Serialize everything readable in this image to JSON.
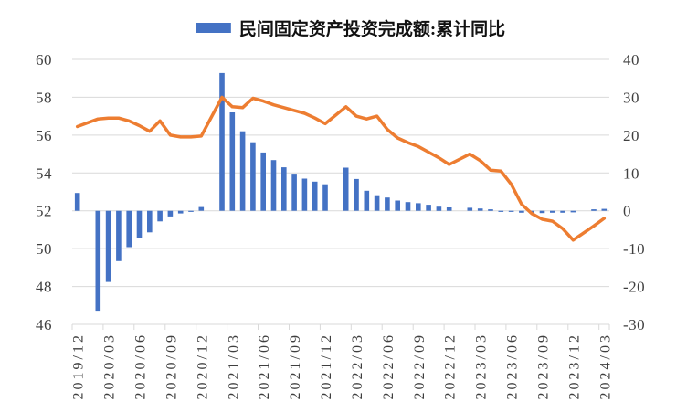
{
  "chart_data": {
    "type": "combo-bar-line",
    "legend": "民间固定资产投资完成额:累计同比",
    "bar_axis": "right",
    "line_axis": "left",
    "months": [
      "2019/12",
      "2020/01",
      "2020/02",
      "2020/03",
      "2020/04",
      "2020/05",
      "2020/06",
      "2020/07",
      "2020/08",
      "2020/09",
      "2020/10",
      "2020/11",
      "2020/12",
      "2021/01",
      "2021/02",
      "2021/03",
      "2021/04",
      "2021/05",
      "2021/06",
      "2021/07",
      "2021/08",
      "2021/09",
      "2021/10",
      "2021/11",
      "2021/12",
      "2022/01",
      "2022/02",
      "2022/03",
      "2022/04",
      "2022/05",
      "2022/06",
      "2022/07",
      "2022/08",
      "2022/09",
      "2022/10",
      "2022/11",
      "2022/12",
      "2023/01",
      "2023/02",
      "2023/03",
      "2023/04",
      "2023/05",
      "2023/06",
      "2023/07",
      "2023/08",
      "2023/09",
      "2023/10",
      "2023/11",
      "2023/12",
      "2024/01",
      "2024/02",
      "2024/03"
    ],
    "bar_values": [
      4.7,
      null,
      -26.4,
      -18.8,
      -13.3,
      -9.6,
      -7.3,
      -5.7,
      -2.8,
      -1.5,
      -0.7,
      -0.2,
      1.0,
      null,
      36.4,
      26.0,
      21.0,
      18.1,
      15.4,
      13.4,
      11.5,
      9.8,
      8.5,
      7.7,
      7.0,
      null,
      11.4,
      8.4,
      5.3,
      4.1,
      3.5,
      2.7,
      2.3,
      2.0,
      1.6,
      1.1,
      0.9,
      null,
      0.8,
      0.6,
      0.4,
      -0.1,
      -0.2,
      -0.5,
      -0.7,
      -0.6,
      -0.5,
      -0.5,
      -0.4,
      null,
      0.4,
      0.5
    ],
    "line_values": [
      56.45,
      null,
      56.85,
      56.9,
      56.9,
      56.75,
      56.5,
      56.2,
      56.75,
      56.0,
      55.9,
      55.9,
      55.95,
      null,
      58.0,
      57.5,
      57.45,
      57.95,
      57.8,
      57.6,
      57.45,
      57.3,
      57.15,
      56.9,
      56.6,
      null,
      57.5,
      57.0,
      56.85,
      57.0,
      56.3,
      55.85,
      55.6,
      55.4,
      55.1,
      54.8,
      54.45,
      null,
      55.0,
      54.65,
      54.15,
      54.1,
      53.4,
      52.35,
      51.85,
      51.55,
      51.45,
      51.05,
      50.45,
      null,
      51.2,
      51.6
    ],
    "x_tick_labels": [
      "2019/12",
      "2020/03",
      "2020/06",
      "2020/09",
      "2020/12",
      "2021/03",
      "2021/06",
      "2021/09",
      "2021/12",
      "2022/03",
      "2022/06",
      "2022/09",
      "2022/12",
      "2023/03",
      "2023/06",
      "2023/09",
      "2023/12",
      "2024/03"
    ],
    "left_axis": {
      "max": 60,
      "min": 46,
      "tick_labels": [
        "60",
        "58",
        "56",
        "54",
        "52",
        "50",
        "48",
        "46"
      ]
    },
    "right_axis": {
      "max": 40,
      "min": -30,
      "tick_labels": [
        "40",
        "30",
        "20",
        "10",
        "0",
        "-10",
        "-20",
        "-30"
      ]
    },
    "colors": {
      "bar": "#4472C4",
      "line": "#ED7D31",
      "gridline": "#D9D9D9",
      "axis_text": "#3f3f3f",
      "background": "#FFFFFF"
    },
    "grid": "horizontal-only",
    "legend_position": "top-center"
  }
}
